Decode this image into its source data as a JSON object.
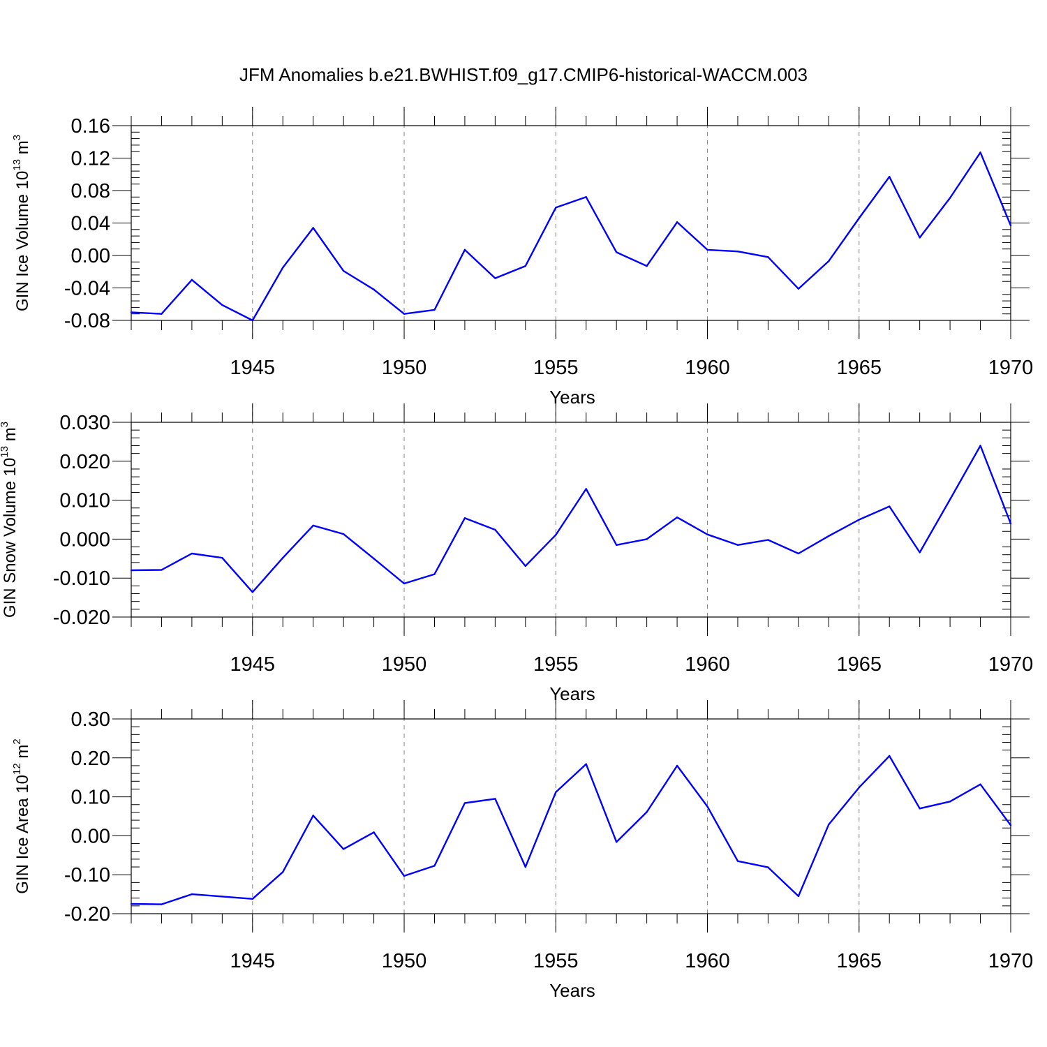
{
  "title": "JFM Anomalies b.e21.BWHIST.f09_g17.CMIP6-historical-WACCM.003",
  "colors": {
    "series": "#0000ff",
    "grid": "#888888"
  },
  "chart_data": [
    {
      "type": "line",
      "title": "",
      "xlabel": "Years",
      "ylabel_main": "GIN Ice Volume 10",
      "ylabel_exp": "13",
      "ylabel_unit": " m",
      "ylabel_unit_exp": "3",
      "xlim": [
        1941,
        1970
      ],
      "ylim": [
        -0.08,
        0.16
      ],
      "x_ticks": [
        1945,
        1950,
        1955,
        1960,
        1965,
        1970
      ],
      "y_ticks": [
        -0.08,
        -0.04,
        0.0,
        0.04,
        0.08,
        0.12,
        0.16
      ],
      "y_tick_labels": [
        "-0.08",
        "-0.04",
        "0.00",
        "0.04",
        "0.08",
        "0.12",
        "0.16"
      ],
      "grid": "vertical-dashed",
      "series": [
        {
          "x": [
            1941,
            1942,
            1943,
            1944,
            1945,
            1946,
            1947,
            1948,
            1949,
            1950,
            1951,
            1952,
            1953,
            1954,
            1955,
            1956,
            1957,
            1958,
            1959,
            1960,
            1961,
            1962,
            1963,
            1964,
            1965,
            1966,
            1967,
            1968,
            1969,
            1970
          ],
          "values": [
            -0.07,
            -0.072,
            -0.03,
            -0.061,
            -0.08,
            -0.015,
            0.034,
            -0.019,
            -0.042,
            -0.072,
            -0.067,
            0.007,
            -0.028,
            -0.013,
            0.059,
            0.072,
            0.004,
            -0.013,
            0.041,
            0.007,
            0.005,
            -0.002,
            -0.041,
            -0.007,
            0.046,
            0.097,
            0.022,
            0.071,
            0.127,
            0.037
          ]
        }
      ]
    },
    {
      "type": "line",
      "title": "",
      "xlabel": "Years",
      "ylabel_main": "GIN Snow Volume 10",
      "ylabel_exp": "13",
      "ylabel_unit": " m",
      "ylabel_unit_exp": "3",
      "xlim": [
        1941,
        1970
      ],
      "ylim": [
        -0.02,
        0.03
      ],
      "x_ticks": [
        1945,
        1950,
        1955,
        1960,
        1965,
        1970
      ],
      "y_ticks": [
        -0.02,
        -0.01,
        0.0,
        0.01,
        0.02,
        0.03
      ],
      "y_tick_labels": [
        "-0.020",
        "-0.010",
        "0.000",
        "0.010",
        "0.020",
        "0.030"
      ],
      "grid": "vertical-dashed",
      "series": [
        {
          "x": [
            1941,
            1942,
            1943,
            1944,
            1945,
            1946,
            1947,
            1948,
            1949,
            1950,
            1951,
            1952,
            1953,
            1954,
            1955,
            1956,
            1957,
            1958,
            1959,
            1960,
            1961,
            1962,
            1963,
            1964,
            1965,
            1966,
            1967,
            1968,
            1969,
            1970
          ],
          "values": [
            -0.008,
            -0.0079,
            -0.0037,
            -0.0048,
            -0.0136,
            -0.0048,
            0.0035,
            0.0013,
            -0.005,
            -0.0114,
            -0.009,
            0.0054,
            0.0024,
            -0.0069,
            0.0011,
            0.0129,
            -0.0015,
            0.0,
            0.0056,
            0.0012,
            -0.0015,
            -0.0002,
            -0.0037,
            0.0008,
            0.005,
            0.0084,
            -0.0034,
            0.0102,
            0.024,
            0.004
          ]
        }
      ]
    },
    {
      "type": "line",
      "title": "",
      "xlabel": "Years",
      "ylabel_main": "GIN Ice Area 10",
      "ylabel_exp": "12",
      "ylabel_unit": " m",
      "ylabel_unit_exp": "2",
      "xlim": [
        1941,
        1970
      ],
      "ylim": [
        -0.2,
        0.3
      ],
      "x_ticks": [
        1945,
        1950,
        1955,
        1960,
        1965,
        1970
      ],
      "y_ticks": [
        -0.2,
        -0.1,
        0.0,
        0.1,
        0.2,
        0.3
      ],
      "y_tick_labels": [
        "-0.20",
        "-0.10",
        "0.00",
        "0.10",
        "0.20",
        "0.30"
      ],
      "grid": "vertical-dashed",
      "series": [
        {
          "x": [
            1941,
            1942,
            1943,
            1944,
            1945,
            1946,
            1947,
            1948,
            1949,
            1950,
            1951,
            1952,
            1953,
            1954,
            1955,
            1956,
            1957,
            1958,
            1959,
            1960,
            1961,
            1962,
            1963,
            1964,
            1965,
            1966,
            1967,
            1968,
            1969,
            1970
          ],
          "values": [
            -0.175,
            -0.176,
            -0.15,
            -0.156,
            -0.162,
            -0.093,
            0.052,
            -0.034,
            0.009,
            -0.103,
            -0.077,
            0.084,
            0.095,
            -0.08,
            0.112,
            0.184,
            -0.016,
            0.061,
            0.18,
            0.075,
            -0.065,
            -0.081,
            -0.155,
            0.029,
            0.124,
            0.205,
            0.07,
            0.088,
            0.132,
            0.027
          ]
        }
      ]
    }
  ]
}
